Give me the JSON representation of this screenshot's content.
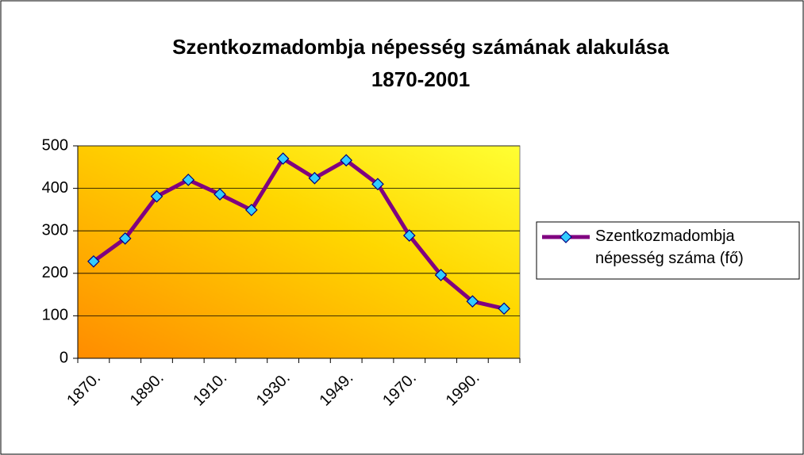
{
  "chart_data": {
    "type": "line",
    "title": "Szentkozmadombja népesség számának alakulása",
    "subtitle": "1870-2001",
    "categories": [
      "1870.",
      null,
      "1890.",
      null,
      "1910.",
      null,
      "1930.",
      null,
      "1949.",
      null,
      "1970.",
      null,
      "1990.",
      null
    ],
    "series": [
      {
        "name": "Szentkozmadombja népesség száma (fő)",
        "color": "#800080",
        "values": [
          228,
          282,
          381,
          420,
          386,
          349,
          470,
          424,
          466,
          410,
          289,
          196,
          134,
          117
        ]
      }
    ],
    "ylim": [
      0,
      500
    ],
    "yticks": [
      0,
      100,
      200,
      300,
      400,
      500
    ],
    "grid": true,
    "legend": "right"
  }
}
